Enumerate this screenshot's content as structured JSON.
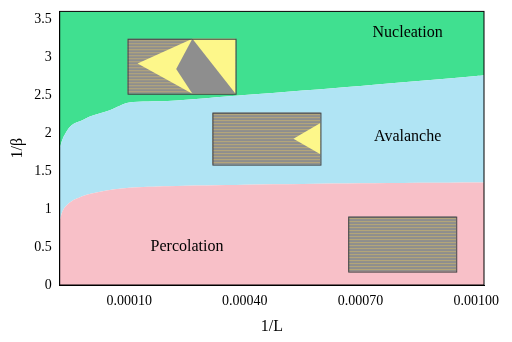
{
  "chart_data": {
    "type": "area",
    "x_label": "1/L",
    "y_label": "1/β",
    "x": [
      -8e-05,
      -7e-05,
      -5e-05,
      -2e-05,
      0,
      5e-05,
      0.0001,
      0.0002,
      0.0004,
      0.0007,
      0.001,
      0.00102
    ],
    "series": [
      {
        "name": "Percolation",
        "color": "#f8c0c8",
        "values": [
          0.85,
          1.0,
          1.1,
          1.17,
          1.2,
          1.25,
          1.28,
          1.3,
          1.32,
          1.34,
          1.35,
          1.35
        ]
      },
      {
        "name": "Avalanche",
        "color": "#b0e4f4",
        "values": [
          1.8,
          1.95,
          2.1,
          2.17,
          2.22,
          2.3,
          2.4,
          2.42,
          2.5,
          2.62,
          2.75,
          2.76
        ]
      },
      {
        "name": "Nucleation",
        "color": "#40e090",
        "values": [
          3.6,
          3.6,
          3.6,
          3.6,
          3.6,
          3.6,
          3.6,
          3.6,
          3.6,
          3.6,
          3.6,
          3.6
        ]
      }
    ],
    "xlim": [
      -8e-05,
      0.00102
    ],
    "xticks": [
      {
        "value": 0.0001,
        "label": "0.00010"
      },
      {
        "value": 0.0004,
        "label": "0.00040"
      },
      {
        "value": 0.0007,
        "label": "0.00070"
      },
      {
        "value": 0.001,
        "label": "0.00100"
      }
    ],
    "ylim": [
      0,
      3.6
    ],
    "yticks": [
      0,
      0.5,
      1,
      1.5,
      2,
      2.5,
      3,
      3.5
    ],
    "grid": false,
    "legend": "none"
  }
}
